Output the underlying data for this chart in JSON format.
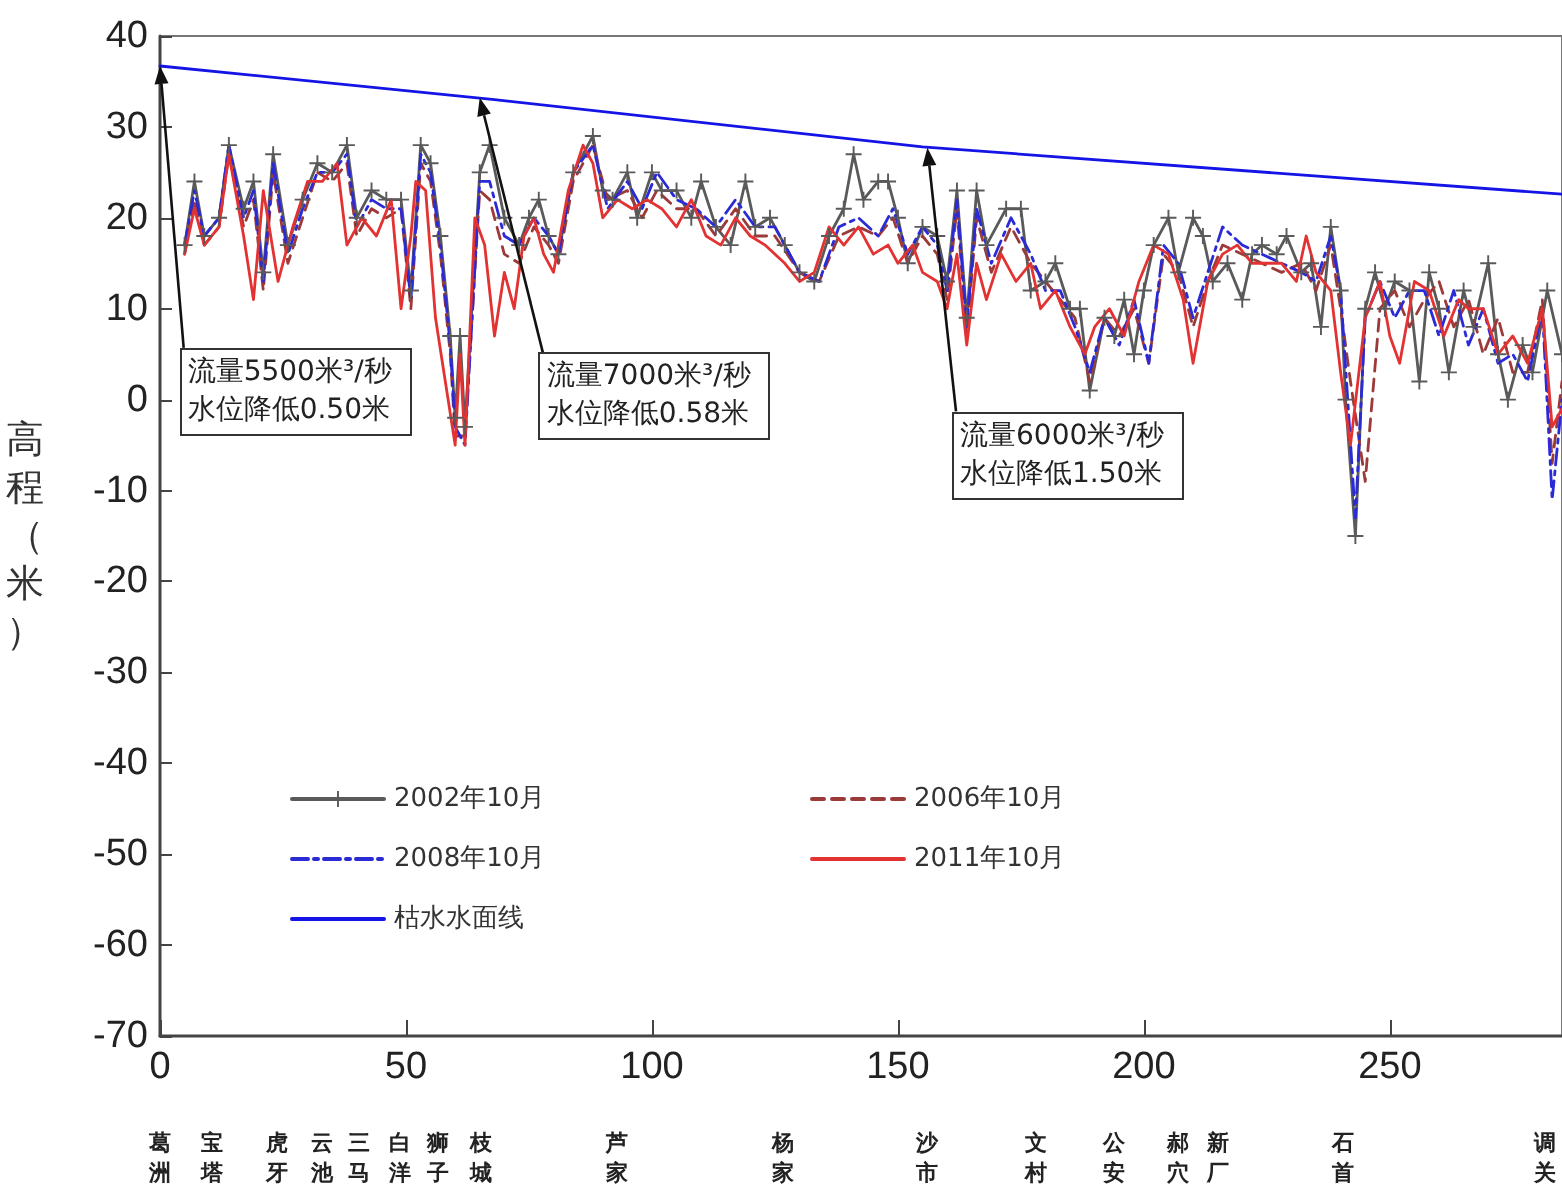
{
  "chart_data": {
    "type": "line",
    "ylabel": "高程（米）",
    "xlim": [
      0,
      285
    ],
    "xticks": [
      0,
      50,
      100,
      150,
      200,
      250
    ],
    "ylim": [
      -70,
      40
    ],
    "yticks": [
      -70,
      -60,
      -50,
      -40,
      -30,
      -20,
      -10,
      0,
      10,
      20,
      30,
      40
    ],
    "grid": false,
    "legend": "bottom left",
    "series": [
      {
        "name": "2002年10月",
        "color": "#5a5a5a",
        "marker": "cross",
        "line_style": "solid",
        "x": [
          5,
          7,
          9,
          12,
          14,
          17,
          19,
          21,
          23,
          26,
          29,
          32,
          35,
          38,
          40,
          43,
          46,
          49,
          51,
          53,
          55,
          57,
          59,
          60,
          61,
          62,
          65,
          67,
          70,
          73,
          75,
          77,
          79,
          81,
          84,
          88,
          90,
          92,
          95,
          97,
          100,
          102,
          105,
          108,
          110,
          113,
          116,
          119,
          121,
          124,
          127,
          130,
          133,
          136,
          139,
          141,
          143,
          146,
          148,
          150,
          152,
          155,
          158,
          160,
          162,
          164,
          166,
          168,
          172,
          175,
          177,
          180,
          182,
          185,
          187,
          189,
          192,
          194,
          196,
          198,
          200,
          202,
          205,
          207,
          210,
          212,
          214,
          217,
          220,
          222,
          224,
          227,
          229,
          232,
          234,
          236,
          238,
          240,
          241,
          243,
          245,
          247,
          249,
          251,
          254,
          256,
          258,
          260,
          262,
          265,
          267,
          270,
          272,
          274,
          277,
          279,
          282,
          285
        ],
        "values": [
          17,
          24,
          18,
          20,
          28,
          21,
          24,
          14,
          27,
          17,
          22,
          26,
          25,
          28,
          20,
          23,
          22,
          22,
          12,
          28,
          26,
          18,
          7,
          -2,
          7,
          -3,
          25,
          28,
          20,
          17,
          20,
          22,
          18,
          16,
          25,
          29,
          23,
          22,
          25,
          20,
          25,
          23,
          23,
          20,
          24,
          19,
          17,
          24,
          19,
          20,
          17,
          14,
          13,
          18,
          21,
          27,
          22,
          24,
          24,
          20,
          15,
          19,
          18,
          13,
          23,
          9,
          23,
          17,
          21,
          21,
          12,
          13,
          15,
          10,
          10,
          1,
          9,
          7,
          11,
          5,
          12,
          17,
          20,
          14,
          20,
          18,
          13,
          15,
          11,
          16,
          17,
          16,
          18,
          14,
          15,
          8,
          19,
          12,
          0,
          -15,
          10,
          14,
          10,
          13,
          12,
          2,
          14,
          10,
          3,
          12,
          8,
          15,
          5,
          0,
          6,
          3,
          12,
          5
        ]
      },
      {
        "name": "2006年10月",
        "color": "#9c3a3a",
        "marker": "none",
        "line_style": "dashed",
        "x": [
          5,
          7,
          9,
          12,
          14,
          17,
          19,
          21,
          23,
          26,
          29,
          32,
          35,
          38,
          40,
          43,
          46,
          49,
          51,
          53,
          55,
          57,
          59,
          60,
          62,
          65,
          67,
          70,
          73,
          76,
          79,
          81,
          84,
          88,
          91,
          95,
          98,
          101,
          105,
          109,
          113,
          117,
          121,
          125,
          130,
          134,
          138,
          142,
          146,
          149,
          152,
          155,
          158,
          160,
          162,
          164,
          166,
          169,
          173,
          177,
          180,
          183,
          186,
          189,
          192,
          195,
          198,
          201,
          204,
          207,
          210,
          213,
          216,
          220,
          224,
          228,
          232,
          235,
          238,
          240,
          242,
          245,
          248,
          251,
          254,
          257,
          260,
          263,
          266,
          269,
          272,
          275,
          278,
          281,
          283,
          285
        ],
        "values": [
          16,
          22,
          17,
          19,
          27,
          19,
          22,
          12,
          25,
          15,
          20,
          25,
          24,
          26,
          18,
          21,
          20,
          21,
          10,
          26,
          24,
          16,
          5,
          -4,
          -4,
          23,
          22,
          16,
          15,
          19,
          17,
          15,
          24,
          28,
          22,
          23,
          20,
          23,
          21,
          21,
          18,
          21,
          18,
          18,
          14,
          13,
          18,
          19,
          18,
          20,
          15,
          18,
          16,
          11,
          21,
          7,
          20,
          14,
          19,
          15,
          13,
          11,
          9,
          2,
          9,
          7,
          10,
          4,
          16,
          14,
          8,
          13,
          17,
          16,
          15,
          14,
          15,
          12,
          17,
          10,
          2,
          -9,
          10,
          12,
          8,
          11,
          13,
          8,
          11,
          5,
          9,
          3,
          3,
          11,
          -7,
          2
        ]
      },
      {
        "name": "2008年10月",
        "color": "#2a2ad6",
        "marker": "none",
        "line_style": "dashdot",
        "x": [
          5,
          7,
          9,
          12,
          14,
          17,
          19,
          21,
          23,
          26,
          29,
          32,
          35,
          38,
          40,
          43,
          46,
          49,
          51,
          53,
          55,
          57,
          59,
          60,
          62,
          65,
          67,
          70,
          73,
          76,
          79,
          81,
          84,
          88,
          91,
          95,
          98,
          101,
          105,
          109,
          113,
          117,
          121,
          125,
          130,
          134,
          138,
          142,
          146,
          149,
          152,
          155,
          158,
          160,
          162,
          164,
          166,
          169,
          173,
          177,
          180,
          183,
          186,
          189,
          192,
          195,
          198,
          201,
          204,
          207,
          210,
          213,
          216,
          220,
          224,
          228,
          232,
          235,
          238,
          240,
          243,
          245,
          248,
          251,
          254,
          257,
          260,
          263,
          266,
          269,
          272,
          275,
          278,
          281,
          283,
          285
        ],
        "values": [
          17,
          23,
          18,
          20,
          28,
          20,
          23,
          13,
          26,
          16,
          21,
          25,
          25,
          27,
          19,
          22,
          21,
          21,
          11,
          27,
          25,
          17,
          6,
          -3,
          -5,
          24,
          24,
          18,
          17,
          20,
          18,
          16,
          25,
          28,
          21,
          24,
          21,
          25,
          22,
          21,
          19,
          22,
          19,
          19,
          14,
          13,
          19,
          20,
          18,
          21,
          16,
          19,
          17,
          12,
          22,
          8,
          21,
          15,
          20,
          16,
          12,
          12,
          8,
          3,
          9,
          6,
          11,
          4,
          17,
          15,
          9,
          14,
          19,
          17,
          16,
          15,
          14,
          13,
          18,
          12,
          -13,
          9,
          13,
          9,
          12,
          12,
          7,
          12,
          6,
          10,
          4,
          5,
          2,
          10,
          -11,
          0
        ]
      },
      {
        "name": "2011年10月",
        "color": "#e23232",
        "marker": "none",
        "line_style": "solid",
        "x": [
          5,
          7,
          9,
          12,
          14,
          17,
          19,
          21,
          24,
          27,
          30,
          33,
          36,
          38,
          41,
          44,
          47,
          49,
          51,
          52,
          54,
          56,
          58,
          60,
          61,
          62,
          64,
          66,
          68,
          70,
          72,
          74,
          76,
          78,
          80,
          83,
          86,
          88,
          90,
          93,
          96,
          99,
          102,
          105,
          108,
          111,
          114,
          117,
          120,
          123,
          127,
          130,
          133,
          136,
          139,
          142,
          145,
          148,
          150,
          153,
          155,
          158,
          160,
          162,
          164,
          166,
          168,
          171,
          174,
          177,
          179,
          182,
          185,
          188,
          190,
          193,
          196,
          199,
          202,
          205,
          208,
          210,
          213,
          216,
          219,
          222,
          225,
          228,
          231,
          233,
          235,
          238,
          240,
          242,
          245,
          248,
          250,
          252,
          255,
          258,
          261,
          264,
          266,
          269,
          272,
          275,
          278,
          281,
          283,
          285
        ],
        "values": [
          16,
          21,
          17,
          19,
          27,
          18,
          11,
          23,
          13,
          19,
          24,
          24,
          26,
          17,
          20,
          18,
          22,
          10,
          18,
          24,
          23,
          9,
          2,
          -5,
          5,
          -5,
          20,
          17,
          7,
          14,
          10,
          18,
          20,
          16,
          14,
          23,
          28,
          26,
          20,
          22,
          21,
          22,
          21,
          19,
          22,
          18,
          17,
          20,
          18,
          17,
          15,
          13,
          14,
          19,
          17,
          19,
          16,
          17,
          15,
          17,
          14,
          13,
          10,
          16,
          6,
          15,
          11,
          16,
          13,
          15,
          10,
          12,
          8,
          5,
          8,
          10,
          7,
          13,
          17,
          16,
          11,
          4,
          13,
          16,
          17,
          15,
          15,
          15,
          13,
          18,
          14,
          12,
          3,
          -5,
          9,
          13,
          7,
          4,
          13,
          12,
          7,
          11,
          10,
          10,
          5,
          7,
          4,
          10,
          -3,
          -1
        ]
      },
      {
        "name": "枯水水面线",
        "color": "#1414e6",
        "marker": "none",
        "line_style": "solid",
        "x": [
          0,
          68,
          155,
          285
        ],
        "values": [
          36.7,
          33,
          27.8,
          22.6
        ]
      }
    ],
    "annotations": [
      {
        "text": "流量5500米³/秒水位降低0.50米",
        "x": 0,
        "y": 36.7
      },
      {
        "text": "流量7000米³/秒水位降低0.58米",
        "x": 65,
        "y": 33.2
      },
      {
        "text": "流量6000米³/秒水位降低1.50米",
        "x": 156,
        "y": 27.7
      },
      "葛洲",
      "宝塔",
      "虎牙",
      "云池",
      "三马",
      "白洋",
      "狮子",
      "枝城",
      "芦家",
      "杨家",
      "沙市",
      "文村",
      "公安",
      "郝穴",
      "新厂",
      "石首",
      "调关"
    ]
  }
}
